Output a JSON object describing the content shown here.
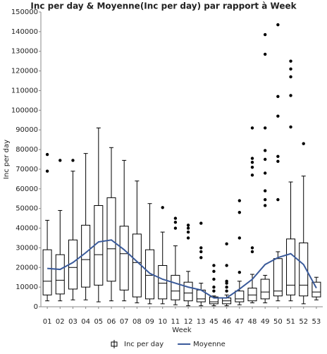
{
  "chart_data": {
    "type": "box",
    "title": "Inc per day & Moyenne(Inc per day) par rapport à Week",
    "x_label": "Week",
    "y_label": "Inc per day",
    "categories": [
      "01",
      "02",
      "03",
      "04",
      "05",
      "06",
      "07",
      "08",
      "09",
      "10",
      "11",
      "12",
      "13",
      "45",
      "46",
      "47",
      "48",
      "49",
      "50",
      "51",
      "52",
      "53"
    ],
    "ylim": [
      0,
      150000
    ],
    "yticks": [
      0,
      10000,
      20000,
      30000,
      40000,
      50000,
      60000,
      70000,
      80000,
      90000,
      100000,
      110000,
      120000,
      130000,
      140000,
      150000
    ],
    "series": [
      {
        "name": "Inc per day",
        "color": "#000000",
        "boxes": [
          {
            "low": 3000,
            "q1": 6000,
            "median": 13000,
            "q3": 29000,
            "high": 44000,
            "outliers": [
              69000,
              77500
            ]
          },
          {
            "low": 3000,
            "q1": 6500,
            "median": 13500,
            "q3": 26500,
            "high": 49000,
            "outliers": [
              74500
            ]
          },
          {
            "low": 3500,
            "q1": 9000,
            "median": 20000,
            "q3": 34000,
            "high": 69000,
            "outliers": [
              74500
            ]
          },
          {
            "low": 3500,
            "q1": 10000,
            "median": 24000,
            "q3": 41500,
            "high": 78000,
            "outliers": []
          },
          {
            "low": 2500,
            "q1": 11000,
            "median": 26500,
            "q3": 51500,
            "high": 91000,
            "outliers": []
          },
          {
            "low": 3000,
            "q1": 13000,
            "median": 29500,
            "q3": 55500,
            "high": 81000,
            "outliers": []
          },
          {
            "low": 3000,
            "q1": 8500,
            "median": 27000,
            "q3": 41000,
            "high": 74500,
            "outliers": []
          },
          {
            "low": 2000,
            "q1": 5000,
            "median": 22500,
            "q3": 37000,
            "high": 64000,
            "outliers": []
          },
          {
            "low": 1500,
            "q1": 4000,
            "median": 16000,
            "q3": 29000,
            "high": 52500,
            "outliers": []
          },
          {
            "low": 1500,
            "q1": 4000,
            "median": 12000,
            "q3": 21000,
            "high": 38000,
            "outliers": [
              50500
            ]
          },
          {
            "low": 1000,
            "q1": 3500,
            "median": 8000,
            "q3": 16000,
            "high": 31000,
            "outliers": [
              40000,
              43000,
              45000
            ]
          },
          {
            "low": 500,
            "q1": 3000,
            "median": 7000,
            "q3": 12500,
            "high": 18000,
            "outliers": [
              35000,
              38000,
              40000,
              41500
            ]
          },
          {
            "low": 500,
            "q1": 2500,
            "median": 4000,
            "q3": 8500,
            "high": 12000,
            "outliers": [
              25000,
              28000,
              30000,
              42500
            ]
          },
          {
            "low": 500,
            "q1": 1500,
            "median": 2500,
            "q3": 5000,
            "high": 5500,
            "outliers": [
              8000,
              10000,
              14000,
              18000,
              21000
            ]
          },
          {
            "low": 500,
            "q1": 1500,
            "median": 3000,
            "q3": 4500,
            "high": 6000,
            "outliers": [
              8000,
              10000,
              12000,
              13000,
              21000,
              32000
            ]
          },
          {
            "low": 1000,
            "q1": 2500,
            "median": 4000,
            "q3": 8000,
            "high": 13000,
            "outliers": [
              17500,
              35000,
              48000,
              54000
            ]
          },
          {
            "low": 2000,
            "q1": 3000,
            "median": 6000,
            "q3": 9500,
            "high": 16500,
            "outliers": [
              28000,
              30000,
              67000,
              71000,
              73500,
              75500,
              91000
            ]
          },
          {
            "low": 2000,
            "q1": 4000,
            "median": 7500,
            "q3": 14000,
            "high": 16000,
            "outliers": [
              51500,
              54500,
              59000,
              68000,
              75000,
              79500,
              91000,
              128500,
              138500
            ]
          },
          {
            "low": 3000,
            "q1": 5500,
            "median": 8000,
            "q3": 24500,
            "high": 28000,
            "outliers": [
              54500,
              74000,
              76500,
              97000,
              107000,
              143500
            ]
          },
          {
            "low": 3000,
            "q1": 6000,
            "median": 11000,
            "q3": 34500,
            "high": 63500,
            "outliers": [
              91500,
              107500,
              117000,
              121000,
              125000
            ]
          },
          {
            "low": 1500,
            "q1": 5500,
            "median": 11000,
            "q3": 32500,
            "high": 66500,
            "outliers": [
              83000
            ]
          },
          {
            "low": 3500,
            "q1": 5000,
            "median": 7500,
            "q3": 12500,
            "high": 15000,
            "outliers": []
          }
        ]
      },
      {
        "name": "Moyenne",
        "type": "line",
        "color": "#3a5a9a",
        "values": [
          19500,
          19000,
          22500,
          27500,
          33000,
          34000,
          29000,
          23000,
          17000,
          14000,
          12000,
          10000,
          8500,
          4500,
          4500,
          9000,
          14000,
          21500,
          25000,
          27000,
          21500,
          9500
        ]
      }
    ]
  }
}
